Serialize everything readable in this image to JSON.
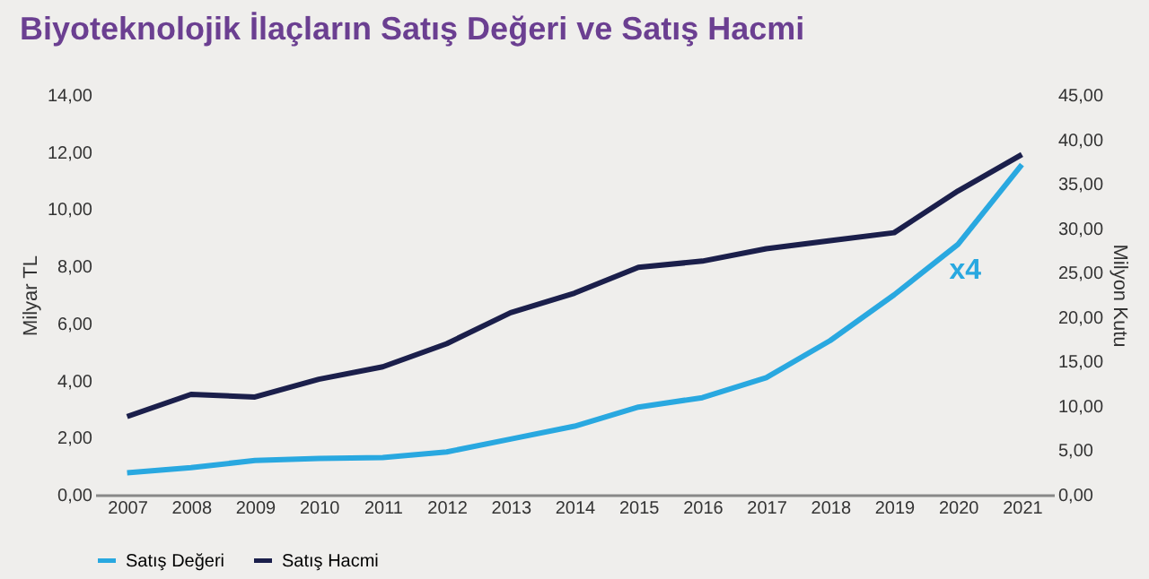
{
  "chart_data": {
    "type": "line",
    "title": "Biyoteknolojik İlaçların Satış Değeri ve Satış Hacmi",
    "categories": [
      "2007",
      "2008",
      "2009",
      "2010",
      "2011",
      "2012",
      "2013",
      "2014",
      "2015",
      "2016",
      "2017",
      "2018",
      "2019",
      "2020",
      "2021"
    ],
    "series": [
      {
        "name": "Satış Değeri",
        "color": "#29a8e0",
        "values": [
          0.77,
          0.95,
          1.2,
          1.27,
          1.3,
          1.5,
          1.95,
          2.4,
          3.07,
          3.4,
          4.1,
          5.4,
          7.0,
          8.77,
          11.56
        ]
      },
      {
        "name": "Satış Hacmi",
        "color": "#1b1f4b",
        "axis": "y2",
        "values": [
          8.8,
          11.3,
          11.0,
          13.0,
          14.4,
          17.0,
          20.5,
          22.7,
          25.6,
          26.3,
          27.7,
          28.6,
          29.5,
          34.2,
          38.3
        ]
      }
    ],
    "ylabel": "Milyar TL",
    "y2label": "Milyon Kutu",
    "ylim": [
      0,
      14
    ],
    "yticks": [
      {
        "value": 0,
        "label": "0,00"
      },
      {
        "value": 2,
        "label": "2,00"
      },
      {
        "value": 4,
        "label": "4,00"
      },
      {
        "value": 6,
        "label": "6,00"
      },
      {
        "value": 8,
        "label": "8,00"
      },
      {
        "value": 10,
        "label": "10,00"
      },
      {
        "value": 12,
        "label": "12,00"
      },
      {
        "value": 14,
        "label": "14,00"
      }
    ],
    "y2lim": [
      0,
      45
    ],
    "y2ticks": [
      {
        "value": 0,
        "label": "0,00"
      },
      {
        "value": 5,
        "label": "5,00"
      },
      {
        "value": 10,
        "label": "10,00"
      },
      {
        "value": 15,
        "label": "15,00"
      },
      {
        "value": 20,
        "label": "20,00"
      },
      {
        "value": 25,
        "label": "25,00"
      },
      {
        "value": 30,
        "label": "30,00"
      },
      {
        "value": 35,
        "label": "35,00"
      },
      {
        "value": 40,
        "label": "40,00"
      },
      {
        "value": 45,
        "label": "45,00"
      }
    ],
    "annotations": [
      {
        "text": "x4",
        "x": "2020",
        "y": 8.77
      }
    ],
    "grid": false,
    "legend": "bottom",
    "marker": "none",
    "line_style": "solid"
  }
}
